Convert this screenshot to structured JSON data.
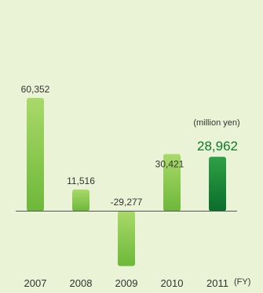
{
  "chart_data": {
    "type": "bar",
    "categories": [
      "2007",
      "2008",
      "2009",
      "2010",
      "2011"
    ],
    "values": [
      60352,
      11516,
      -29277,
      30421,
      28962
    ],
    "labels": [
      "60,352",
      "11,516",
      "-29,277",
      "30,421",
      "28,962"
    ],
    "unit": "(million yen)",
    "x_suffix": "(FY)",
    "highlight_index": 4,
    "ylim": [
      -45000,
      70000
    ],
    "colors": {
      "background": "#eaf3d6",
      "bar_light_top": "#a9d96a",
      "bar_light_bottom": "#6db83a",
      "bar_dark_top": "#2fa047",
      "bar_dark_bottom": "#0a6e2a",
      "highlight_text": "#0a7a2a",
      "axis": "#555555"
    }
  }
}
